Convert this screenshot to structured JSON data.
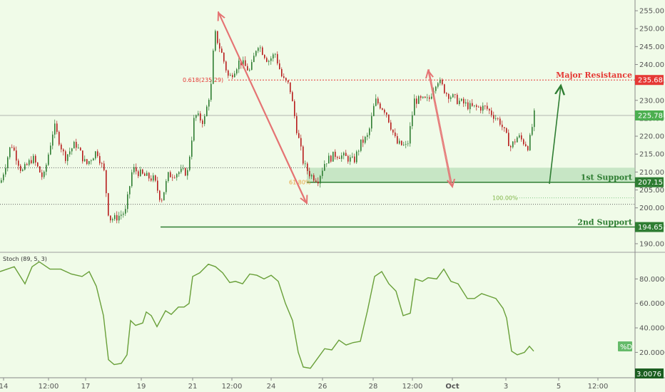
{
  "chart_data": [
    {
      "type": "candlestick",
      "price_axis": {
        "ticks": [
          "255.00",
          "250.00",
          "245.00",
          "240.00",
          "235.00",
          "230.00",
          "225.00",
          "220.00",
          "215.00",
          "210.00",
          "205.00",
          "200.00",
          "195.00",
          "190.00"
        ],
        "ylim": [
          188,
          257
        ]
      },
      "time_axis": {
        "ticks": [
          "14",
          "12:00",
          "17",
          "19",
          "21",
          "12:00",
          "24",
          "26",
          "28",
          "12:00",
          "Oct",
          "3",
          "5",
          "12:00"
        ]
      },
      "current_price": {
        "label": "225.78",
        "value": 225.78
      },
      "levels": [
        {
          "name": "Major Resistance",
          "value": 235.68,
          "label": "235.68",
          "color": "#e53935"
        },
        {
          "name": "1st Support",
          "value": 207.15,
          "label": "207.15",
          "color": "#2e7d32"
        },
        {
          "name": "2nd Support",
          "value": 194.65,
          "label": "194.65",
          "color": "#2e7d32"
        }
      ],
      "fib_labels": {
        "f618": "0.618(235.29)",
        "f618_short": "61.80%",
        "f100": "100.00%"
      },
      "support_zone": [
        207.15,
        211.2
      ],
      "close_path": [
        [
          0,
          207
        ],
        [
          15,
          218
        ],
        [
          30,
          210
        ],
        [
          45,
          214
        ],
        [
          60,
          208
        ],
        [
          75,
          223
        ],
        [
          90,
          214
        ],
        [
          105,
          218
        ],
        [
          120,
          212
        ],
        [
          135,
          216
        ],
        [
          145,
          210
        ],
        [
          152,
          197
        ],
        [
          160,
          197
        ],
        [
          175,
          199
        ],
        [
          185,
          211
        ],
        [
          200,
          209
        ],
        [
          215,
          208
        ],
        [
          225,
          202
        ],
        [
          235,
          209
        ],
        [
          250,
          210
        ],
        [
          262,
          210
        ],
        [
          272,
          226
        ],
        [
          285,
          224
        ],
        [
          295,
          234
        ],
        [
          300,
          249
        ],
        [
          310,
          243
        ],
        [
          320,
          236
        ],
        [
          335,
          241
        ],
        [
          350,
          238
        ],
        [
          360,
          246
        ],
        [
          375,
          241
        ],
        [
          385,
          243
        ],
        [
          395,
          236
        ],
        [
          405,
          234
        ],
        [
          415,
          222
        ],
        [
          425,
          212
        ],
        [
          435,
          209
        ],
        [
          445,
          208
        ],
        [
          455,
          213
        ],
        [
          470,
          215
        ],
        [
          485,
          214
        ],
        [
          495,
          213
        ],
        [
          505,
          218
        ],
        [
          515,
          220
        ],
        [
          525,
          230
        ],
        [
          540,
          227
        ],
        [
          555,
          218
        ],
        [
          570,
          217
        ],
        [
          580,
          230
        ],
        [
          600,
          230
        ],
        [
          612,
          236
        ],
        [
          625,
          232
        ],
        [
          640,
          230
        ],
        [
          660,
          228
        ],
        [
          680,
          228
        ],
        [
          700,
          224
        ],
        [
          715,
          217
        ],
        [
          725,
          220
        ],
        [
          740,
          217
        ],
        [
          748,
          226
        ]
      ],
      "colors": {
        "up": "#2e7d32",
        "down": "#b71c1c"
      }
    },
    {
      "type": "line",
      "name": "Stoch (89, 5, 3)",
      "axis": {
        "ticks": [
          "80.0000",
          "60.0000",
          "40.0000",
          "20.0000"
        ],
        "ylim": [
          1,
          100
        ]
      },
      "current_label": "%D",
      "bottom_value": "3.0076",
      "values": [
        [
          0,
          86
        ],
        [
          20,
          90
        ],
        [
          35,
          76
        ],
        [
          45,
          90
        ],
        [
          55,
          94
        ],
        [
          70,
          88
        ],
        [
          85,
          88
        ],
        [
          100,
          84
        ],
        [
          115,
          82
        ],
        [
          125,
          86
        ],
        [
          135,
          74
        ],
        [
          145,
          50
        ],
        [
          152,
          14
        ],
        [
          160,
          10
        ],
        [
          170,
          11
        ],
        [
          178,
          18
        ],
        [
          183,
          46
        ],
        [
          190,
          42
        ],
        [
          200,
          44
        ],
        [
          205,
          53
        ],
        [
          212,
          50
        ],
        [
          220,
          41
        ],
        [
          232,
          54
        ],
        [
          240,
          51
        ],
        [
          250,
          57
        ],
        [
          258,
          57
        ],
        [
          265,
          60
        ],
        [
          270,
          82
        ],
        [
          280,
          85
        ],
        [
          292,
          92
        ],
        [
          302,
          90
        ],
        [
          312,
          85
        ],
        [
          322,
          77
        ],
        [
          330,
          78
        ],
        [
          340,
          76
        ],
        [
          350,
          84
        ],
        [
          360,
          83
        ],
        [
          370,
          80
        ],
        [
          380,
          83
        ],
        [
          390,
          78
        ],
        [
          400,
          60
        ],
        [
          410,
          46
        ],
        [
          418,
          20
        ],
        [
          425,
          8
        ],
        [
          435,
          7
        ],
        [
          445,
          15
        ],
        [
          455,
          23
        ],
        [
          465,
          22
        ],
        [
          475,
          30
        ],
        [
          485,
          26
        ],
        [
          495,
          28
        ],
        [
          505,
          29
        ],
        [
          515,
          54
        ],
        [
          525,
          82
        ],
        [
          535,
          86
        ],
        [
          545,
          76
        ],
        [
          555,
          70
        ],
        [
          565,
          50
        ],
        [
          575,
          52
        ],
        [
          582,
          80
        ],
        [
          592,
          78
        ],
        [
          600,
          81
        ],
        [
          612,
          80
        ],
        [
          622,
          88
        ],
        [
          632,
          78
        ],
        [
          642,
          76
        ],
        [
          655,
          64
        ],
        [
          665,
          64
        ],
        [
          675,
          68
        ],
        [
          685,
          66
        ],
        [
          695,
          64
        ],
        [
          705,
          56
        ],
        [
          710,
          48
        ],
        [
          717,
          21
        ],
        [
          725,
          18
        ],
        [
          735,
          20
        ],
        [
          742,
          25
        ],
        [
          748,
          21
        ]
      ]
    }
  ],
  "indicator_label": "Stoch (89, 5, 3)"
}
